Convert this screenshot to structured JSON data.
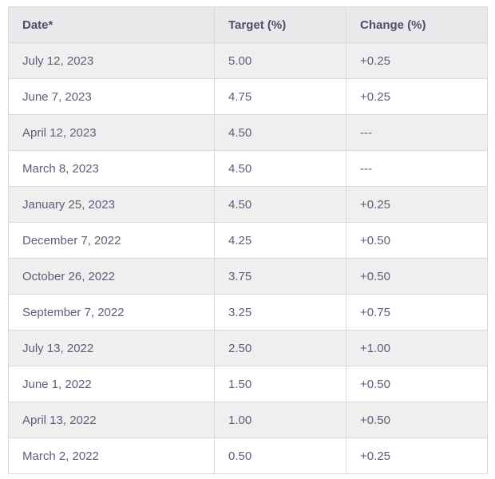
{
  "table": {
    "columns": [
      "Date*",
      "Target (%)",
      "Change (%)"
    ],
    "rows": [
      {
        "date": "July 12, 2023",
        "target": "5.00",
        "change": "+0.25"
      },
      {
        "date": "June 7, 2023",
        "target": "4.75",
        "change": "+0.25"
      },
      {
        "date": "April 12, 2023",
        "target": "4.50",
        "change": "---"
      },
      {
        "date": "March 8, 2023",
        "target": "4.50",
        "change": "---"
      },
      {
        "date": "January 25, 2023",
        "target": "4.50",
        "change": "+0.25"
      },
      {
        "date": "December 7, 2022",
        "target": "4.25",
        "change": "+0.50"
      },
      {
        "date": "October 26, 2022",
        "target": "3.75",
        "change": "+0.50"
      },
      {
        "date": "September 7, 2022",
        "target": "3.25",
        "change": "+0.75"
      },
      {
        "date": "July 13, 2022",
        "target": "2.50",
        "change": "+1.00"
      },
      {
        "date": "June 1, 2022",
        "target": "1.50",
        "change": "+0.50"
      },
      {
        "date": "April 13, 2022",
        "target": "1.00",
        "change": "+0.50"
      },
      {
        "date": "March 2, 2022",
        "target": "0.50",
        "change": "+0.25"
      }
    ]
  },
  "colors": {
    "header_bg": "#e9e9ec",
    "stripe_bg": "#efeff0",
    "row_bg": "#ffffff",
    "border": "#d9d9dc",
    "header_text": "#514d6a",
    "body_text": "#5f5c78"
  },
  "chart_data": {
    "type": "table",
    "title": "",
    "columns": [
      "Date*",
      "Target (%)",
      "Change (%)"
    ],
    "rows": [
      [
        "July 12, 2023",
        "5.00",
        "+0.25"
      ],
      [
        "June 7, 2023",
        "4.75",
        "+0.25"
      ],
      [
        "April 12, 2023",
        "4.50",
        "---"
      ],
      [
        "March 8, 2023",
        "4.50",
        "---"
      ],
      [
        "January 25, 2023",
        "4.50",
        "+0.25"
      ],
      [
        "December 7, 2022",
        "4.25",
        "+0.50"
      ],
      [
        "October 26, 2022",
        "3.75",
        "+0.50"
      ],
      [
        "September 7, 2022",
        "3.25",
        "+0.75"
      ],
      [
        "July 13, 2022",
        "2.50",
        "+1.00"
      ],
      [
        "June 1, 2022",
        "1.50",
        "+0.50"
      ],
      [
        "April 13, 2022",
        "1.00",
        "+0.50"
      ],
      [
        "March 2, 2022",
        "0.50",
        "+0.25"
      ]
    ]
  }
}
